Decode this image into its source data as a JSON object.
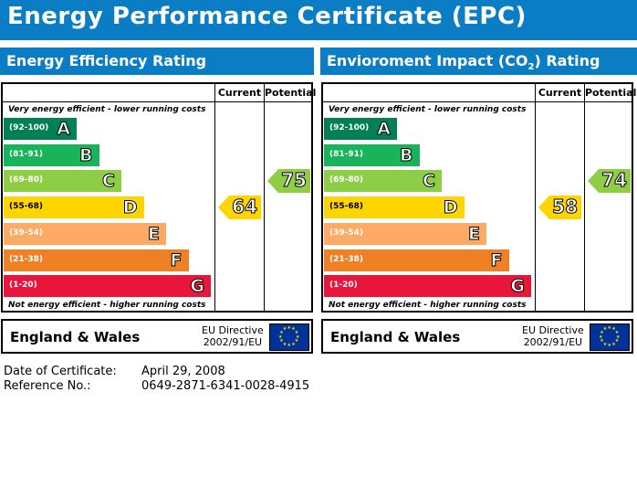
{
  "title": "Energy Performance Certificate (EPC)",
  "left": {
    "heading": "Energy Efficiency Rating",
    "current": "64",
    "potential": "75"
  },
  "right": {
    "heading_pre": "Envioroment Impact (CO",
    "heading_sub": "2",
    "heading_post": ") Rating",
    "current": "58",
    "potential": "74"
  },
  "columns": {
    "current": "Current",
    "potential": "Potential"
  },
  "captions": {
    "top": "Very energy efficient - lower running costs",
    "bottom": "Not energy efficient - higher running costs"
  },
  "bands": [
    {
      "range": "(92-100)",
      "letter": "A",
      "color": "#008054"
    },
    {
      "range": "(81-91)",
      "letter": "B",
      "color": "#19b459"
    },
    {
      "range": "(69-80)",
      "letter": "C",
      "color": "#8dce46"
    },
    {
      "range": "(55-68)",
      "letter": "D",
      "color": "#ffd500"
    },
    {
      "range": "(39-54)",
      "letter": "E",
      "color": "#fcaa65"
    },
    {
      "range": "(21-38)",
      "letter": "F",
      "color": "#ef8023"
    },
    {
      "range": "(1-20)",
      "letter": "G",
      "color": "#e9153b"
    }
  ],
  "footer": {
    "region": "England & Wales",
    "directive_line1": "EU Directive",
    "directive_line2": "2002/91/EU"
  },
  "meta": {
    "date_label": "Date of Certificate:",
    "date_value": "April 29, 2008",
    "ref_label": "Reference No.:",
    "ref_value": "0649-2871-6341-0028-4915"
  },
  "colors": {
    "brand_blue": "#0a7dc4",
    "eu_blue": "#003399",
    "eu_star": "#ffdd00"
  }
}
